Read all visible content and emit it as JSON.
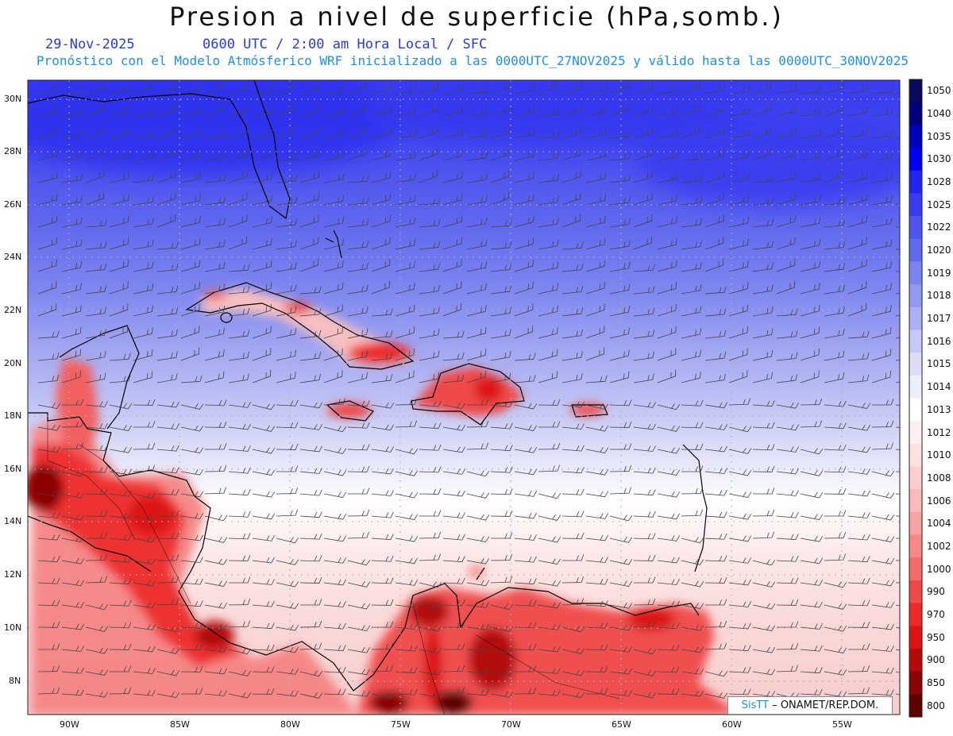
{
  "title": "Presion a nivel de superficie (hPa,somb.)",
  "date": "29-Nov-2025",
  "time_info": "0600 UTC / 2:00 am Hora Local / SFC",
  "forecast_info": "Pronóstico con el Modelo Atmósferico WRF inicializado a las 0000UTC_27NOV2025 y válido hasta las  0000UTC_30NOV2025",
  "latitudes": [
    "30N",
    "28N",
    "26N",
    "24N",
    "22N",
    "20N",
    "18N",
    "16N",
    "14N",
    "12N",
    "10N",
    "8N"
  ],
  "longitudes": [
    "90W",
    "85W",
    "80W",
    "75W",
    "70W",
    "65W",
    "60W",
    "55W"
  ],
  "colorbar": {
    "levels": [
      "1050",
      "1040",
      "1035",
      "1030",
      "1028",
      "1025",
      "1022",
      "1020",
      "1019",
      "1018",
      "1017",
      "1016",
      "1015",
      "1014",
      "1013",
      "1012",
      "1010",
      "1008",
      "1006",
      "1004",
      "1002",
      "1000",
      "990",
      "970",
      "950",
      "900",
      "850",
      "800"
    ],
    "colors": [
      "#0a0a5a",
      "#00007a",
      "#0000b8",
      "#0000ee",
      "#2323f0",
      "#3a3cf0",
      "#4f55ef",
      "#626aee",
      "#7c84ef",
      "#9399f0",
      "#abb0f2",
      "#c6c9f5",
      "#dcdef8",
      "#eeeefc",
      "#ffffff",
      "#fff0f0",
      "#fde0e0",
      "#fbcece",
      "#f9baba",
      "#f7a3a3",
      "#f58888",
      "#f26a6a",
      "#ef4848",
      "#ee2a2a",
      "#dc1414",
      "#b40a0a",
      "#8c0505",
      "#5c0000"
    ]
  },
  "credit": {
    "sis": "SisTT",
    "text": " – ONAMET/REP.DOM."
  }
}
